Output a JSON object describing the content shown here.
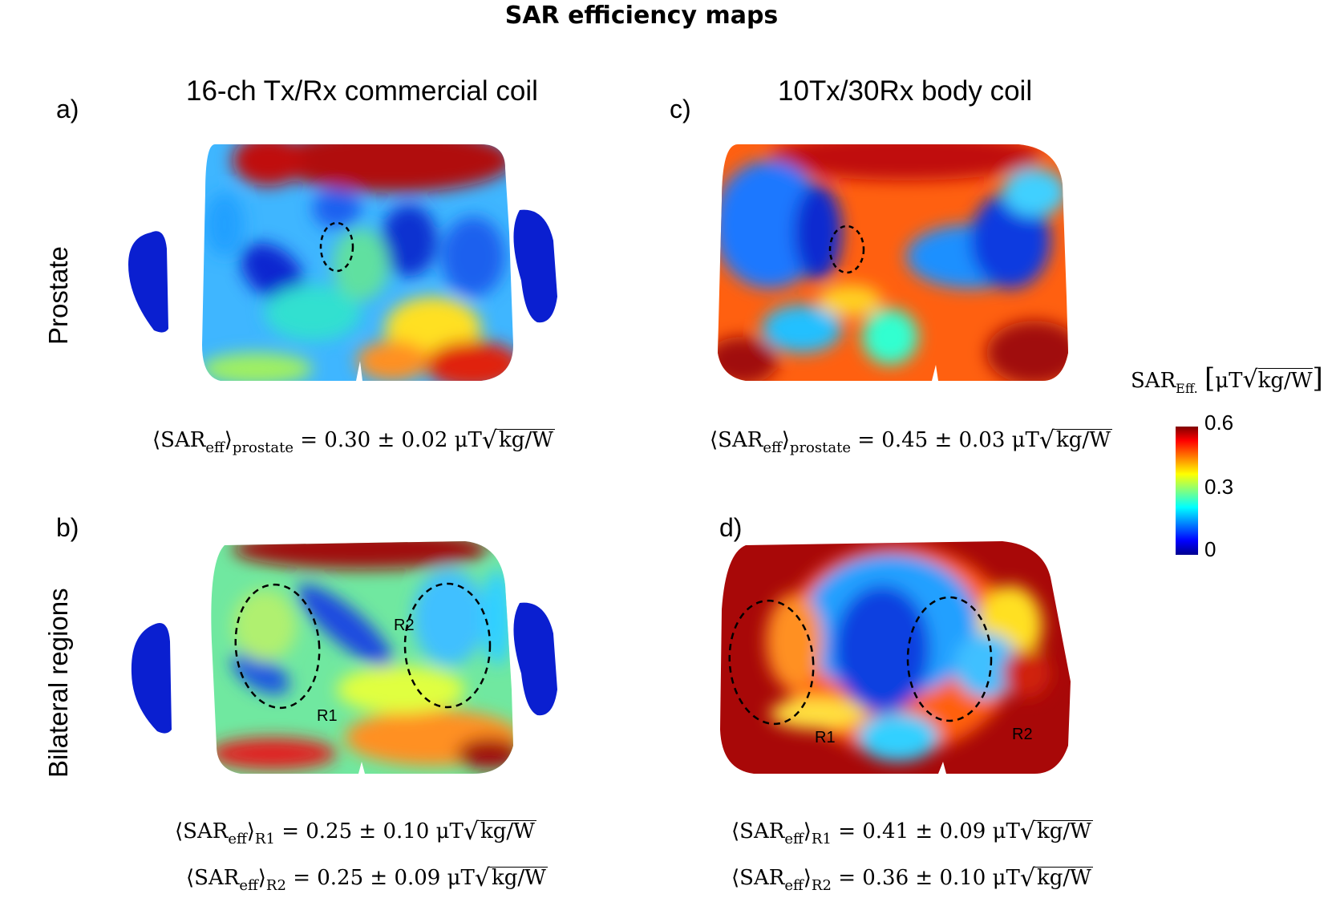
{
  "title": "SAR efficiency maps",
  "columns": [
    {
      "letter_top": "a)",
      "letter_bottom": "b)",
      "title": "16-ch Tx/Rx commercial coil"
    },
    {
      "letter_top": "c)",
      "letter_bottom": "d)",
      "title": "10Tx/30Rx body coil"
    }
  ],
  "rows": [
    "Prostate",
    "Bilateral regions"
  ],
  "regions": {
    "r1": "R1",
    "r2": "R2"
  },
  "equations": {
    "a": {
      "lhs": "⟨SAR",
      "sub1": "eff",
      "close": "⟩",
      "sub2": "prostate",
      "rhs": " = 0.30 ± 0.02 μT",
      "unit": "kg/W"
    },
    "c": {
      "lhs": "⟨SAR",
      "sub1": "eff",
      "close": "⟩",
      "sub2": "prostate",
      "rhs": " = 0.45 ± 0.03 μT",
      "unit": "kg/W"
    },
    "b1": {
      "lhs": "⟨SAR",
      "sub1": "eff",
      "close": "⟩",
      "sub2": "R1",
      "rhs": " = 0.25 ± 0.10 μT",
      "unit": "kg/W"
    },
    "b2": {
      "lhs": "⟨SAR",
      "sub1": "eff",
      "close": "⟩",
      "sub2": "R2",
      "rhs": " = 0.25 ± 0.09 μT",
      "unit": "kg/W"
    },
    "d1": {
      "lhs": "⟨SAR",
      "sub1": "eff",
      "close": "⟩",
      "sub2": "R1",
      "rhs": " = 0.41 ± 0.09 μT",
      "unit": "kg/W"
    },
    "d2": {
      "lhs": "⟨SAR",
      "sub1": "eff",
      "close": "⟩",
      "sub2": "R2",
      "rhs": " = 0.36 ± 0.10 μT",
      "unit": "kg/W"
    }
  },
  "colorbar": {
    "label": "SAR",
    "label_sub": "Eff.",
    "unit_prefix": "μT",
    "unit": "kg/W",
    "ticks": [
      "0.6",
      "0.3",
      "0"
    ],
    "colors": [
      "#00008f",
      "#0000ff",
      "#00ffff",
      "#ffff00",
      "#ff0000",
      "#800000"
    ]
  }
}
